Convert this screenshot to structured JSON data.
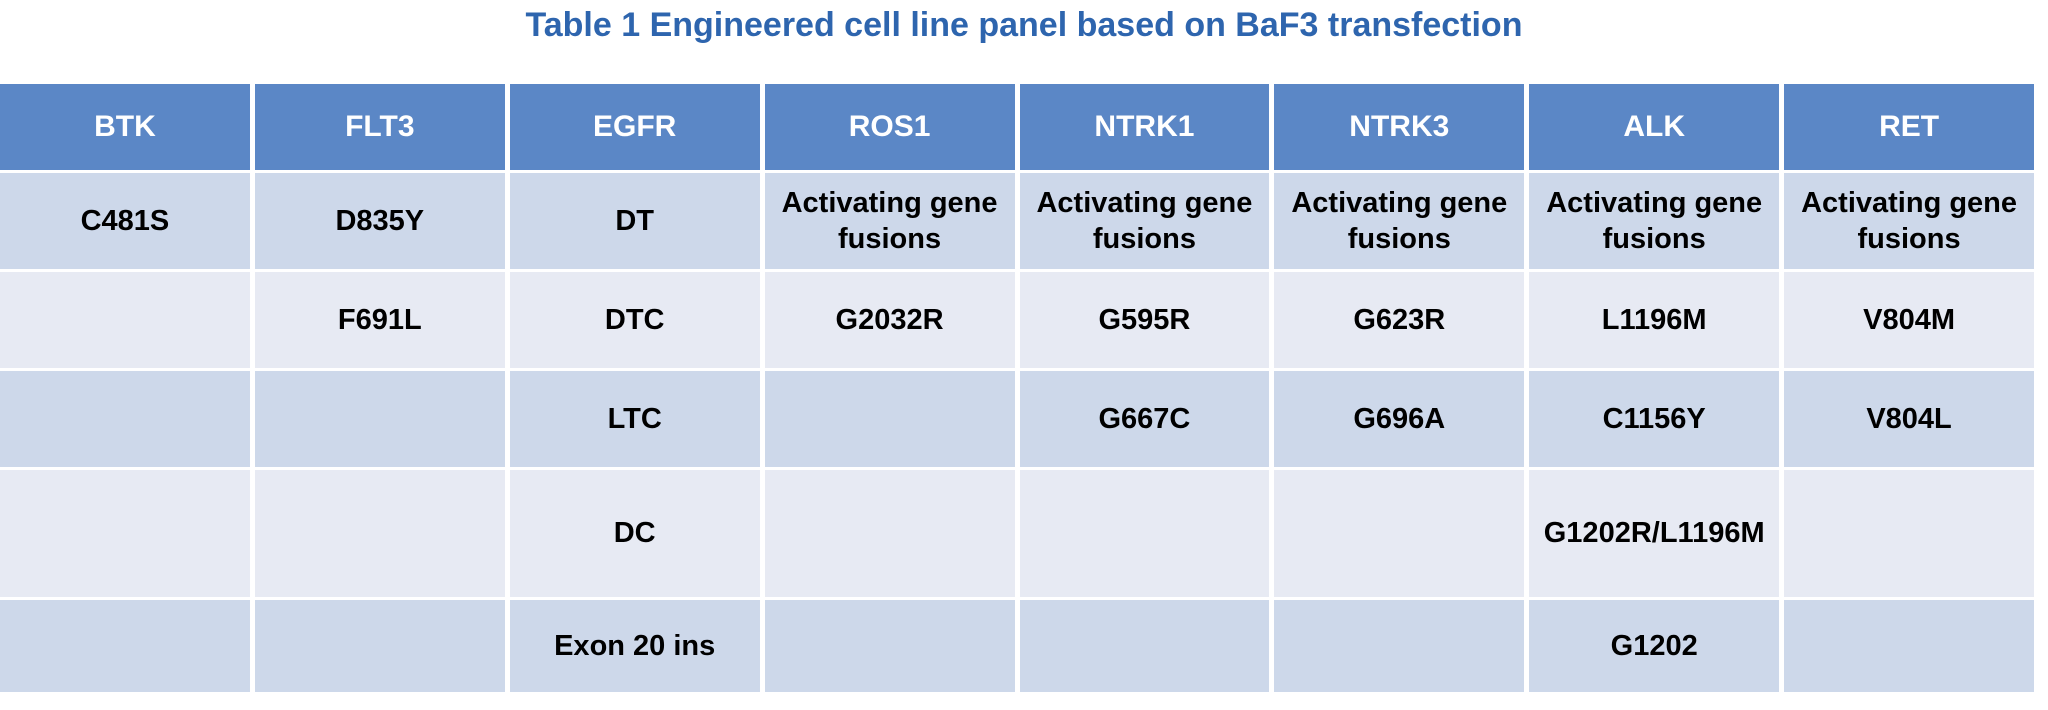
{
  "title": "Table 1 Engineered cell line panel based on BaF3 transfection",
  "colors": {
    "title_text": "#2E65AE",
    "header_bg": "#5B87C6",
    "header_text": "#FFFFFF",
    "band_dark": "#CDD8EA",
    "band_light": "#E7EAF3",
    "cell_text": "#000000",
    "gridline": "#FFFFFF"
  },
  "table": {
    "columns": [
      "BTK",
      "FLT3",
      "EGFR",
      "ROS1",
      "NTRK1",
      "NTRK3",
      "ALK",
      "RET"
    ],
    "rows": [
      {
        "cells": [
          "C481S",
          "D835Y",
          "DT",
          "Activating gene fusions",
          "Activating gene fusions",
          "Activating gene fusions",
          "Activating gene fusions",
          "Activating gene fusions"
        ]
      },
      {
        "cells": [
          "",
          "F691L",
          "DTC",
          "G2032R",
          "G595R",
          "G623R",
          "L1196M",
          "V804M"
        ]
      },
      {
        "cells": [
          "",
          "",
          "LTC",
          "",
          "G667C",
          "G696A",
          "C1156Y",
          "V804L"
        ]
      },
      {
        "cells": [
          "",
          "",
          "DC",
          "",
          "",
          "",
          "G1202R/L1196M",
          ""
        ]
      },
      {
        "cells": [
          "",
          "",
          "Exon 20 ins",
          "",
          "",
          "",
          "G1202",
          ""
        ]
      }
    ]
  }
}
